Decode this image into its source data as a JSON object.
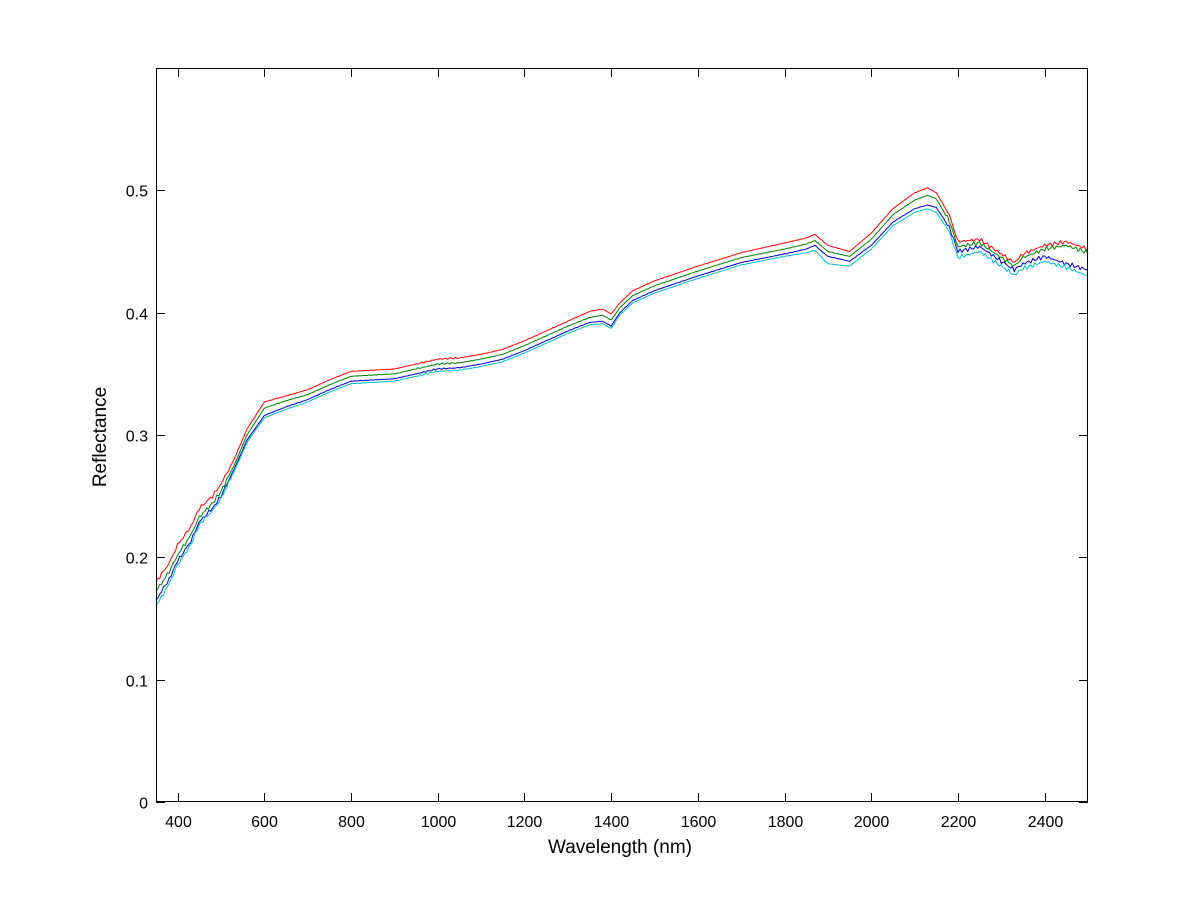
{
  "chart_data": {
    "type": "line",
    "xlabel": "Wavelength (nm)",
    "ylabel": "Reflectance",
    "xlim": [
      350,
      2500
    ],
    "ylim": [
      0,
      0.6
    ],
    "xticks": [
      400,
      600,
      800,
      1000,
      1200,
      1400,
      1600,
      1800,
      2000,
      2200,
      2400
    ],
    "xtick_labels": [
      "400",
      "600",
      "800",
      "1000",
      "1200",
      "1400",
      "1600",
      "1800",
      "2000",
      "2200",
      "2400"
    ],
    "yticks": [
      0,
      0.1,
      0.2,
      0.3,
      0.4,
      0.5
    ],
    "ytick_labels": [
      "0",
      "0.1",
      "0.2",
      "0.3",
      "0.4",
      "0.5"
    ],
    "grid": false,
    "x": [
      350,
      380,
      400,
      430,
      450,
      480,
      500,
      530,
      560,
      600,
      650,
      700,
      750,
      800,
      850,
      900,
      950,
      1000,
      1050,
      1100,
      1150,
      1200,
      1250,
      1300,
      1350,
      1380,
      1400,
      1420,
      1450,
      1500,
      1600,
      1700,
      1800,
      1850,
      1870,
      1900,
      1950,
      2000,
      2050,
      2100,
      2130,
      2150,
      2180,
      2200,
      2250,
      2300,
      2330,
      2350,
      2400,
      2450,
      2500
    ],
    "series": [
      {
        "color": "#ff0000",
        "values": [
          0.18,
          0.195,
          0.21,
          0.225,
          0.24,
          0.25,
          0.26,
          0.28,
          0.305,
          0.327,
          0.332,
          0.337,
          0.345,
          0.352,
          0.353,
          0.354,
          0.358,
          0.362,
          0.363,
          0.366,
          0.37,
          0.377,
          0.385,
          0.393,
          0.401,
          0.403,
          0.399,
          0.408,
          0.418,
          0.426,
          0.438,
          0.449,
          0.457,
          0.461,
          0.464,
          0.455,
          0.45,
          0.465,
          0.485,
          0.498,
          0.502,
          0.498,
          0.48,
          0.458,
          0.46,
          0.448,
          0.441,
          0.448,
          0.455,
          0.458,
          0.452
        ]
      },
      {
        "color": "#008000",
        "values": [
          0.172,
          0.188,
          0.202,
          0.218,
          0.233,
          0.244,
          0.254,
          0.275,
          0.3,
          0.322,
          0.328,
          0.333,
          0.341,
          0.348,
          0.349,
          0.35,
          0.354,
          0.358,
          0.359,
          0.362,
          0.366,
          0.373,
          0.381,
          0.389,
          0.396,
          0.398,
          0.394,
          0.404,
          0.414,
          0.422,
          0.434,
          0.445,
          0.452,
          0.456,
          0.459,
          0.45,
          0.446,
          0.46,
          0.48,
          0.492,
          0.496,
          0.493,
          0.475,
          0.454,
          0.457,
          0.445,
          0.438,
          0.445,
          0.452,
          0.455,
          0.449
        ]
      },
      {
        "color": "#0000cc",
        "values": [
          0.165,
          0.182,
          0.197,
          0.213,
          0.229,
          0.24,
          0.25,
          0.272,
          0.296,
          0.316,
          0.323,
          0.329,
          0.337,
          0.344,
          0.345,
          0.346,
          0.35,
          0.354,
          0.355,
          0.358,
          0.362,
          0.369,
          0.377,
          0.385,
          0.392,
          0.393,
          0.389,
          0.4,
          0.41,
          0.418,
          0.43,
          0.441,
          0.448,
          0.452,
          0.455,
          0.446,
          0.442,
          0.455,
          0.474,
          0.485,
          0.488,
          0.486,
          0.47,
          0.45,
          0.454,
          0.442,
          0.435,
          0.44,
          0.446,
          0.44,
          0.435
        ]
      },
      {
        "color": "#00bbcc",
        "values": [
          0.16,
          0.178,
          0.194,
          0.21,
          0.227,
          0.238,
          0.248,
          0.27,
          0.294,
          0.314,
          0.321,
          0.327,
          0.335,
          0.342,
          0.343,
          0.344,
          0.348,
          0.352,
          0.353,
          0.356,
          0.36,
          0.367,
          0.375,
          0.383,
          0.39,
          0.391,
          0.387,
          0.398,
          0.408,
          0.416,
          0.428,
          0.439,
          0.446,
          0.449,
          0.451,
          0.44,
          0.438,
          0.452,
          0.471,
          0.482,
          0.485,
          0.482,
          0.466,
          0.445,
          0.45,
          0.438,
          0.431,
          0.436,
          0.442,
          0.437,
          0.43
        ]
      }
    ]
  }
}
